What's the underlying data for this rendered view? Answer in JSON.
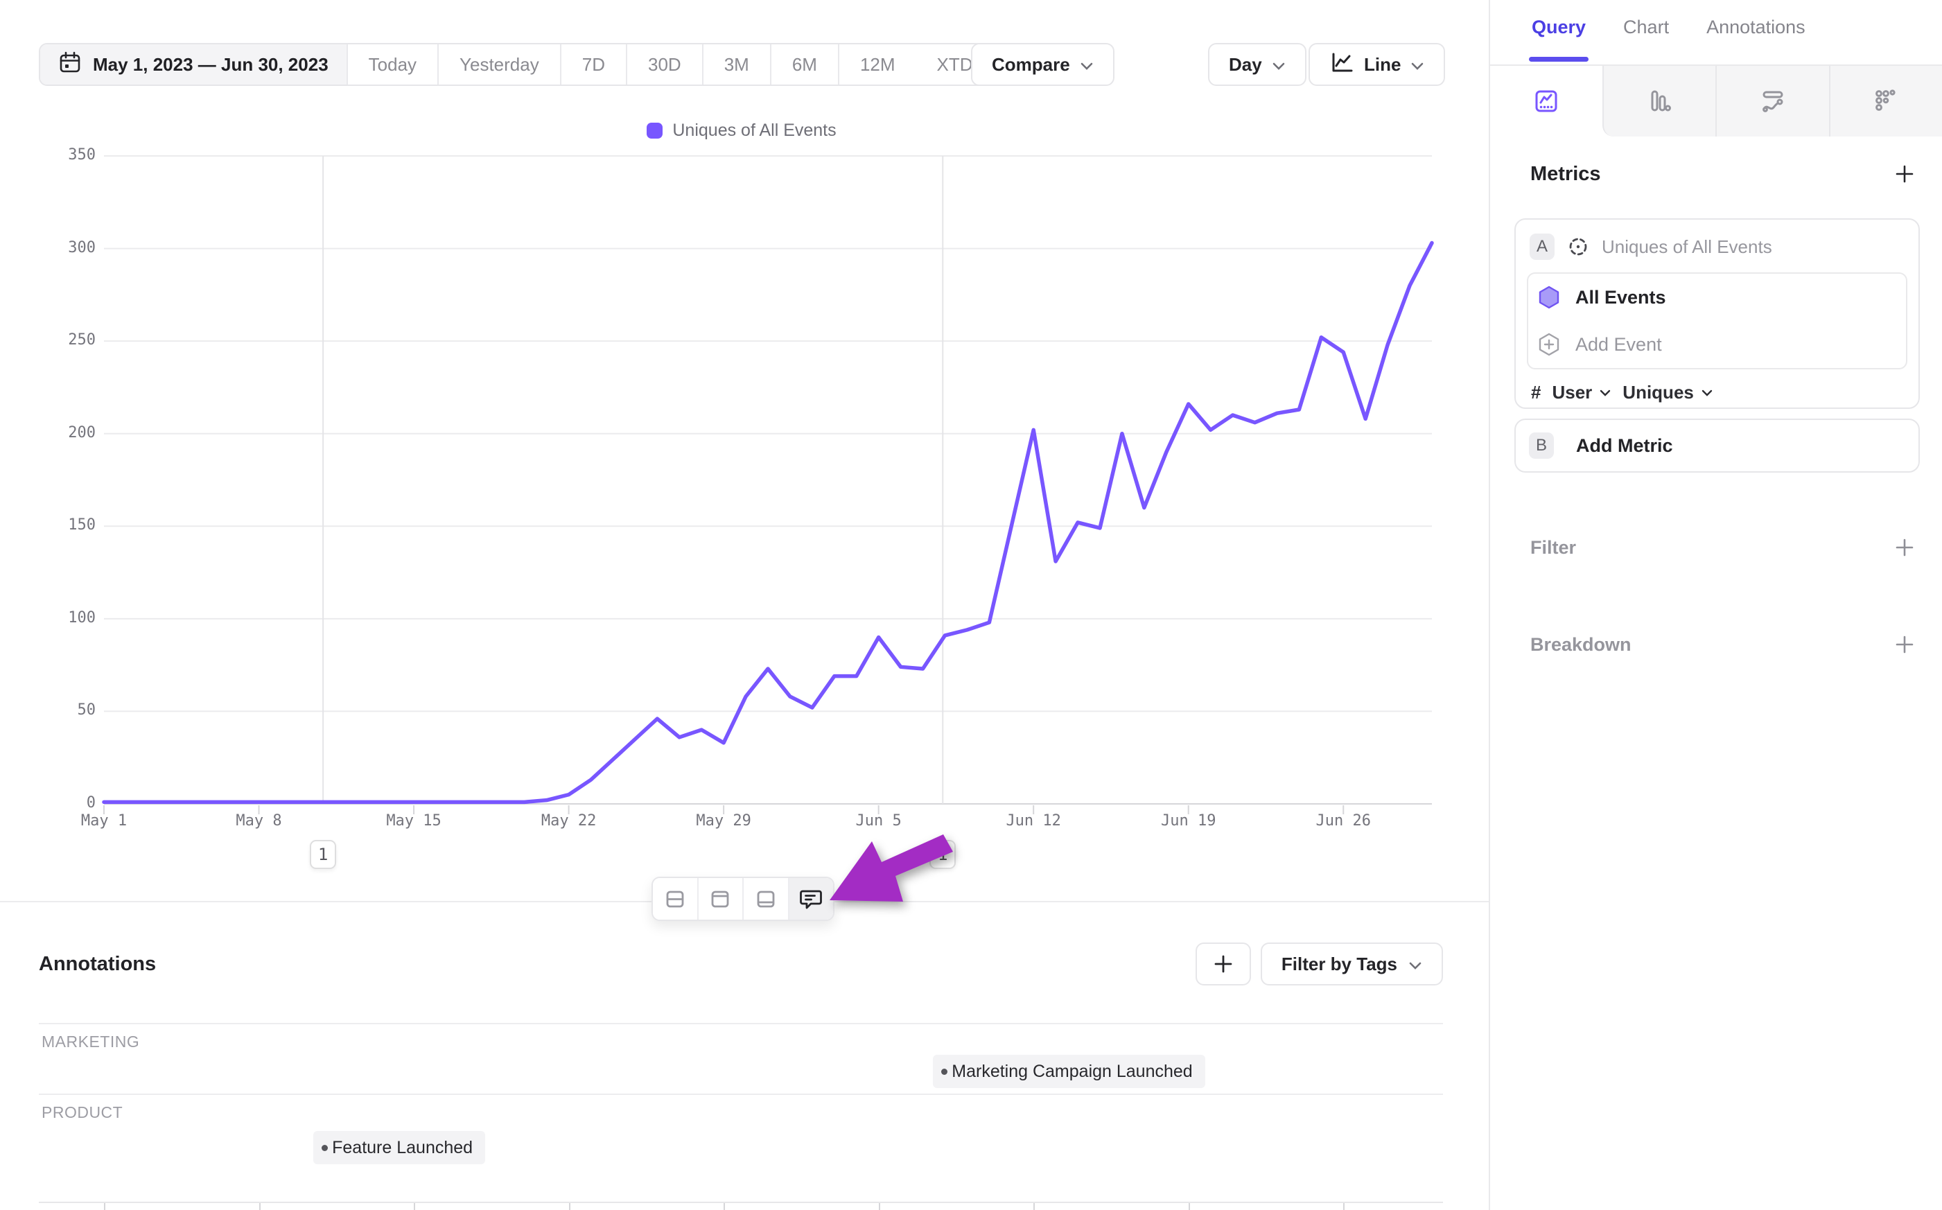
{
  "toolbar": {
    "date_range": "May 1, 2023 — Jun 30, 2023",
    "presets": [
      "Today",
      "Yesterday",
      "7D",
      "30D",
      "3M",
      "6M",
      "12M"
    ],
    "xtd_label": "XTD",
    "compare_label": "Compare",
    "granularity_label": "Day",
    "chart_type_label": "Line"
  },
  "legend_label": "Uniques of All Events",
  "chart_data": {
    "type": "line",
    "title": "Uniques of All Events",
    "xlabel": "",
    "ylabel": "",
    "ylim": [
      0,
      350
    ],
    "y_ticks": [
      0,
      50,
      100,
      150,
      200,
      250,
      300,
      350
    ],
    "days": 61,
    "x_start": "May 1, 2023",
    "x_end": "Jun 30, 2023",
    "x_tick_labels": [
      "May 1",
      "May 8",
      "May 15",
      "May 22",
      "May 29",
      "Jun 5",
      "Jun 12",
      "Jun 19",
      "Jun 26"
    ],
    "x_tick_days": [
      0,
      7,
      14,
      21,
      28,
      35,
      42,
      49,
      56
    ],
    "grid": "horizontal",
    "series": [
      {
        "name": "Uniques of All Events",
        "color": "#7856FF",
        "values": [
          1,
          1,
          1,
          1,
          1,
          1,
          1,
          1,
          1,
          1,
          1,
          1,
          1,
          1,
          1,
          1,
          1,
          1,
          1,
          1,
          2,
          5,
          13,
          24,
          35,
          46,
          36,
          40,
          33,
          58,
          73,
          58,
          52,
          69,
          69,
          90,
          74,
          73,
          91,
          94,
          98,
          150,
          202,
          131,
          152,
          149,
          200,
          160,
          190,
          216,
          202,
          210,
          206,
          211,
          213,
          252,
          244,
          208,
          248,
          280,
          303
        ]
      }
    ],
    "annotation_markers": [
      {
        "day": 9.9,
        "badge": "1"
      },
      {
        "day": 37.9,
        "badge": "1"
      }
    ]
  },
  "chart_toolbar": {
    "buttons": [
      "split-view",
      "panel-top",
      "panel-bottom",
      "annotation-comment"
    ],
    "active": "annotation-comment"
  },
  "annotations_panel": {
    "title": "Annotations",
    "filter_label": "Filter by Tags",
    "groups": [
      {
        "category": "MARKETING",
        "items": [
          {
            "label": "Marketing Campaign Launched",
            "day": 37.9
          }
        ]
      },
      {
        "category": "PRODUCT",
        "items": [
          {
            "label": "Feature Launched",
            "day": 9.9
          }
        ]
      }
    ]
  },
  "sidebar": {
    "tabs": [
      {
        "label": "Query",
        "active": true
      },
      {
        "label": "Chart",
        "active": false
      },
      {
        "label": "Annotations",
        "active": false
      }
    ],
    "chart_types": [
      "line-chart",
      "bar-chart",
      "flow",
      "funnel-dots"
    ],
    "metrics_title": "Metrics",
    "metric": {
      "letter": "A",
      "name": "Uniques of All Events",
      "event": "All Events",
      "add_event_label": "Add Event",
      "agg_prefix": "#",
      "agg_entity": "User",
      "agg_type": "Uniques"
    },
    "add_metric": {
      "letter": "B",
      "label": "Add Metric"
    },
    "filter_label": "Filter",
    "breakdown_label": "Breakdown"
  },
  "colors": {
    "accent": "#7856FF",
    "tab_active": "#4B3FE4",
    "cursor_arrow": "#A32CC4",
    "grid": "#EBEBED"
  }
}
